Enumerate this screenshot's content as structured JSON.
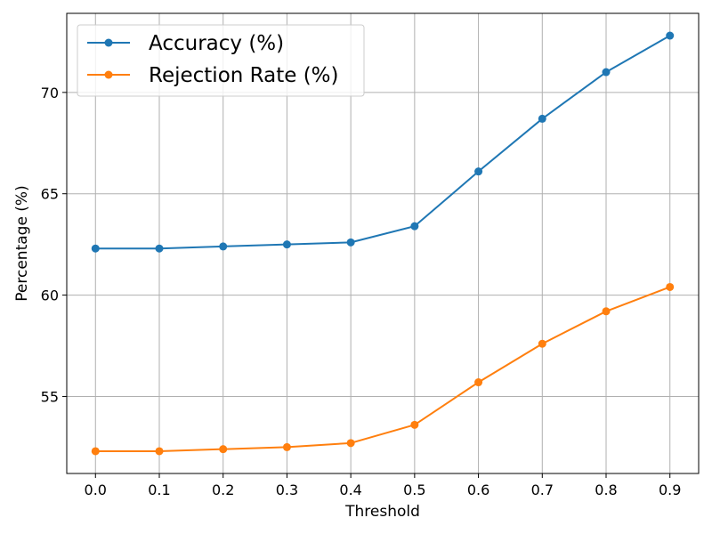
{
  "chart_data": {
    "type": "line",
    "title": "",
    "xlabel": "Threshold",
    "ylabel": "Percentage (%)",
    "x": [
      0.0,
      0.1,
      0.2,
      0.3,
      0.4,
      0.5,
      0.6,
      0.7,
      0.8,
      0.9
    ],
    "x_tick_labels": [
      "0.0",
      "0.1",
      "0.2",
      "0.3",
      "0.4",
      "0.5",
      "0.6",
      "0.7",
      "0.8",
      "0.9"
    ],
    "y_ticks": [
      55,
      60,
      65,
      70
    ],
    "y_tick_labels": [
      "55",
      "60",
      "65",
      "70"
    ],
    "xlim": [
      -0.045,
      0.945
    ],
    "ylim": [
      51.2,
      73.9
    ],
    "grid": true,
    "legend_position": "top-left",
    "series": [
      {
        "name": "Accuracy (%)",
        "color": "#1f77b4",
        "marker": "circle",
        "values": [
          62.3,
          62.3,
          62.4,
          62.5,
          62.6,
          63.4,
          66.1,
          68.7,
          71.0,
          72.8
        ]
      },
      {
        "name": "Rejection Rate (%)",
        "color": "#ff7f0e",
        "marker": "circle",
        "values": [
          52.3,
          52.3,
          52.4,
          52.5,
          52.7,
          53.6,
          55.7,
          57.6,
          59.2,
          60.4
        ]
      }
    ]
  }
}
